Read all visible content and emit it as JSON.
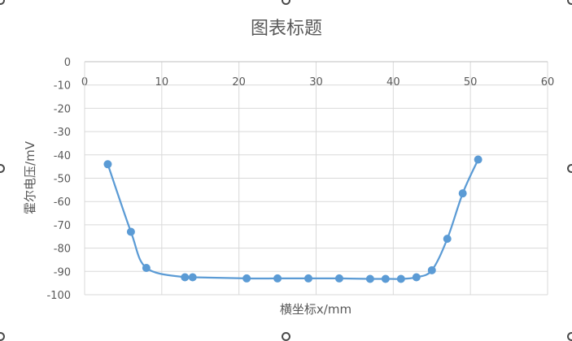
{
  "chart_data": {
    "type": "scatter",
    "title": "图表标题",
    "xlabel": "横坐标x/mm",
    "ylabel": "霍尔电压/mV",
    "xlim": [
      0,
      60
    ],
    "ylim": [
      -100,
      0
    ],
    "x_ticks": [
      0,
      10,
      20,
      30,
      40,
      50,
      60
    ],
    "y_ticks": [
      0,
      -10,
      -20,
      -30,
      -40,
      -50,
      -60,
      -70,
      -80,
      -90,
      -100
    ],
    "x_tick_labels": [
      "0",
      "10",
      "20",
      "30",
      "40",
      "50",
      "60"
    ],
    "y_tick_labels": [
      "0",
      "-10",
      "-20",
      "-30",
      "-40",
      "-50",
      "-60",
      "-70",
      "-80",
      "-90",
      "-100"
    ],
    "x_axis_position": "top",
    "grid": true,
    "smooth_line": true,
    "series": [
      {
        "color": "#5b9bd5",
        "x": [
          3,
          6,
          8,
          13,
          14,
          21,
          25,
          29,
          33,
          37,
          39,
          41,
          43,
          45,
          47,
          49,
          51
        ],
        "y": [
          -44,
          -73,
          -88.5,
          -92.5,
          -92.5,
          -93,
          -93,
          -93,
          -93,
          -93.2,
          -93.2,
          -93.2,
          -92.5,
          -89.5,
          -76,
          -56.5,
          -42
        ]
      }
    ]
  }
}
